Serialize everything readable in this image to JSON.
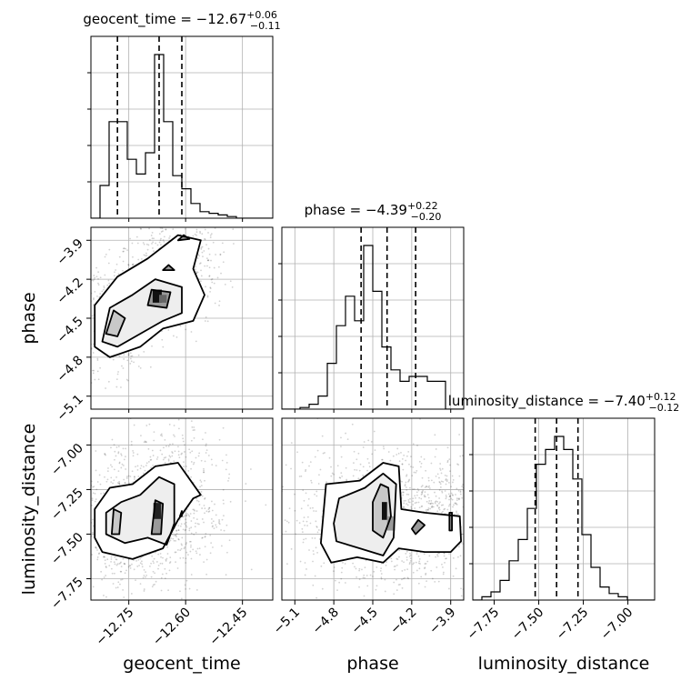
{
  "chart_data": {
    "type": "corner",
    "parameters": [
      "geocent_time",
      "phase",
      "luminosity_distance"
    ],
    "titles": {
      "geocent_time": {
        "label": "geocent_time",
        "median": "−12.67",
        "plus": "+0.06",
        "minus": "−0.11"
      },
      "phase": {
        "label": "phase",
        "median": "−4.39",
        "plus": "+0.22",
        "minus": "−0.20"
      },
      "luminosity_distance": {
        "label": "luminosity_distance",
        "median": "−7.40",
        "plus": "+0.12",
        "minus": "−0.12"
      }
    },
    "axis_labels": {
      "x": [
        "geocent_time",
        "phase",
        "luminosity_distance"
      ],
      "y": [
        "phase",
        "luminosity_distance"
      ]
    },
    "ranges": {
      "geocent_time": [
        -12.85,
        -12.37
      ],
      "phase": [
        -5.2,
        -3.8
      ],
      "luminosity_distance": [
        -7.87,
        -6.85
      ]
    },
    "ticks": {
      "geocent_time": {
        "values": [
          -12.75,
          -12.6,
          -12.45
        ],
        "labels": [
          "−12.75",
          "−12.60",
          "−12.45"
        ]
      },
      "phase": {
        "values": [
          -5.1,
          -4.8,
          -4.5,
          -4.2,
          -3.9
        ],
        "labels": [
          "−5.1",
          "−4.8",
          "−4.5",
          "−4.2",
          "−3.9"
        ]
      },
      "luminosity_distance": {
        "values": [
          -7.75,
          -7.5,
          -7.25,
          -7.0
        ],
        "labels": [
          "−7.75",
          "−7.50",
          "−7.25",
          "−7.00"
        ]
      }
    },
    "histograms": {
      "geocent_time": {
        "bin_start": -12.85,
        "bin_width": 0.024,
        "heights": [
          0.0,
          0.2,
          0.59,
          0.59,
          0.36,
          0.27,
          0.4,
          1.0,
          0.59,
          0.26,
          0.18,
          0.09,
          0.04,
          0.03,
          0.02,
          0.01,
          0.0,
          0.0,
          0.0,
          0.0
        ],
        "quantiles": [
          -12.78,
          -12.67,
          -12.61
        ]
      },
      "phase": {
        "bin_start": -5.2,
        "bin_width": 0.07,
        "heights": [
          0.0,
          0.0,
          0.01,
          0.03,
          0.08,
          0.28,
          0.51,
          0.69,
          0.54,
          1.0,
          0.72,
          0.38,
          0.24,
          0.17,
          0.2,
          0.2,
          0.17,
          0.17,
          0.0,
          0.0
        ],
        "quantiles": [
          -4.59,
          -4.39,
          -4.17
        ]
      },
      "luminosity_distance": {
        "bin_start": -7.87,
        "bin_width": 0.051,
        "heights": [
          0.0,
          0.02,
          0.05,
          0.12,
          0.24,
          0.37,
          0.56,
          0.83,
          0.92,
          1.0,
          0.92,
          0.74,
          0.4,
          0.2,
          0.08,
          0.04,
          0.02,
          0.0,
          0.0,
          0.0
        ],
        "quantiles": [
          -7.52,
          -7.4,
          -7.28
        ]
      }
    },
    "grid": true
  }
}
